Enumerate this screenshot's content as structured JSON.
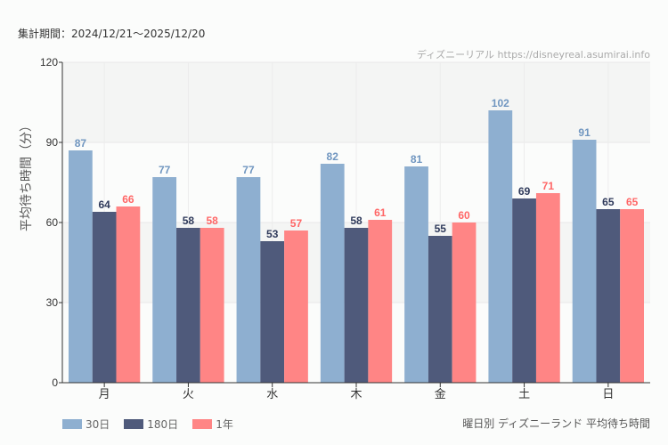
{
  "header": {
    "period": "集計期間：2024/12/21〜2025/12/20",
    "credit": "ディズニーリアル https://disneyreal.asumirai.info"
  },
  "chart_data": {
    "type": "bar",
    "title": "曜日別 ディズニーランド 平均待ち時間",
    "ylabel": "平均待ち時間（分）",
    "xlabel": "",
    "ylim": [
      0,
      120
    ],
    "yticks": [
      0,
      30,
      60,
      90,
      120
    ],
    "grid": true,
    "legend": "bottom-left",
    "categories": [
      "月",
      "火",
      "水",
      "木",
      "金",
      "土",
      "日"
    ],
    "series": [
      {
        "name": "30日",
        "color": "#8eafd0",
        "label_color": "#7096c0",
        "values": [
          87,
          77,
          77,
          82,
          81,
          102,
          91
        ]
      },
      {
        "name": "180日",
        "color": "#4f5a7b",
        "label_color": "#2f3a5b",
        "values": [
          64,
          58,
          53,
          58,
          55,
          69,
          65
        ]
      },
      {
        "name": "1年",
        "color": "#ff8585",
        "label_color": "#ff6666",
        "values": [
          66,
          58,
          57,
          61,
          60,
          71,
          65
        ]
      }
    ]
  }
}
